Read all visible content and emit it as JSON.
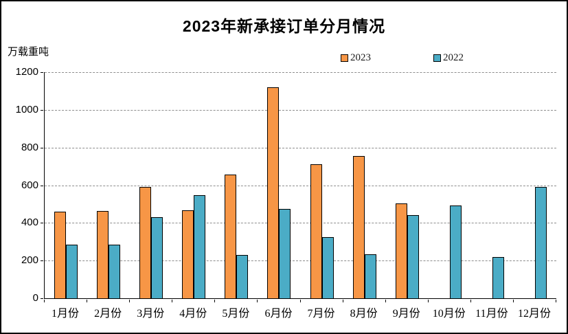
{
  "title": "2023年新承接订单分月情况",
  "y_unit_label": "万载重吨",
  "legend": {
    "item_2023": "2023",
    "item_2022": "2022"
  },
  "colors": {
    "series_2023": "#F79646",
    "series_2022": "#4BACC6",
    "bar_border": "#000000",
    "gridline": "#8C8C8C",
    "background": "#FFFFFF",
    "outer_border": "#000000"
  },
  "chart_data": {
    "type": "bar",
    "title": "2023年新承接订单分月情况",
    "xlabel": "",
    "ylabel": "万载重吨",
    "ylim": [
      0,
      1200
    ],
    "ytick_step": 200,
    "yticks": [
      0,
      200,
      400,
      600,
      800,
      1000,
      1200
    ],
    "grid": true,
    "gridline_style": "dashed",
    "legend_position": "top",
    "categories": [
      "1月份",
      "2月份",
      "3月份",
      "4月份",
      "5月份",
      "6月份",
      "7月份",
      "8月份",
      "9月份",
      "10月份",
      "11月份",
      "12月份"
    ],
    "series": [
      {
        "name": "2023",
        "color": "#F79646",
        "values": [
          460,
          465,
          590,
          466,
          657,
          1120,
          710,
          756,
          503,
          null,
          null,
          null
        ]
      },
      {
        "name": "2022",
        "color": "#4BACC6",
        "values": [
          283,
          283,
          430,
          546,
          229,
          475,
          326,
          232,
          440,
          494,
          219,
          590
        ]
      }
    ]
  }
}
